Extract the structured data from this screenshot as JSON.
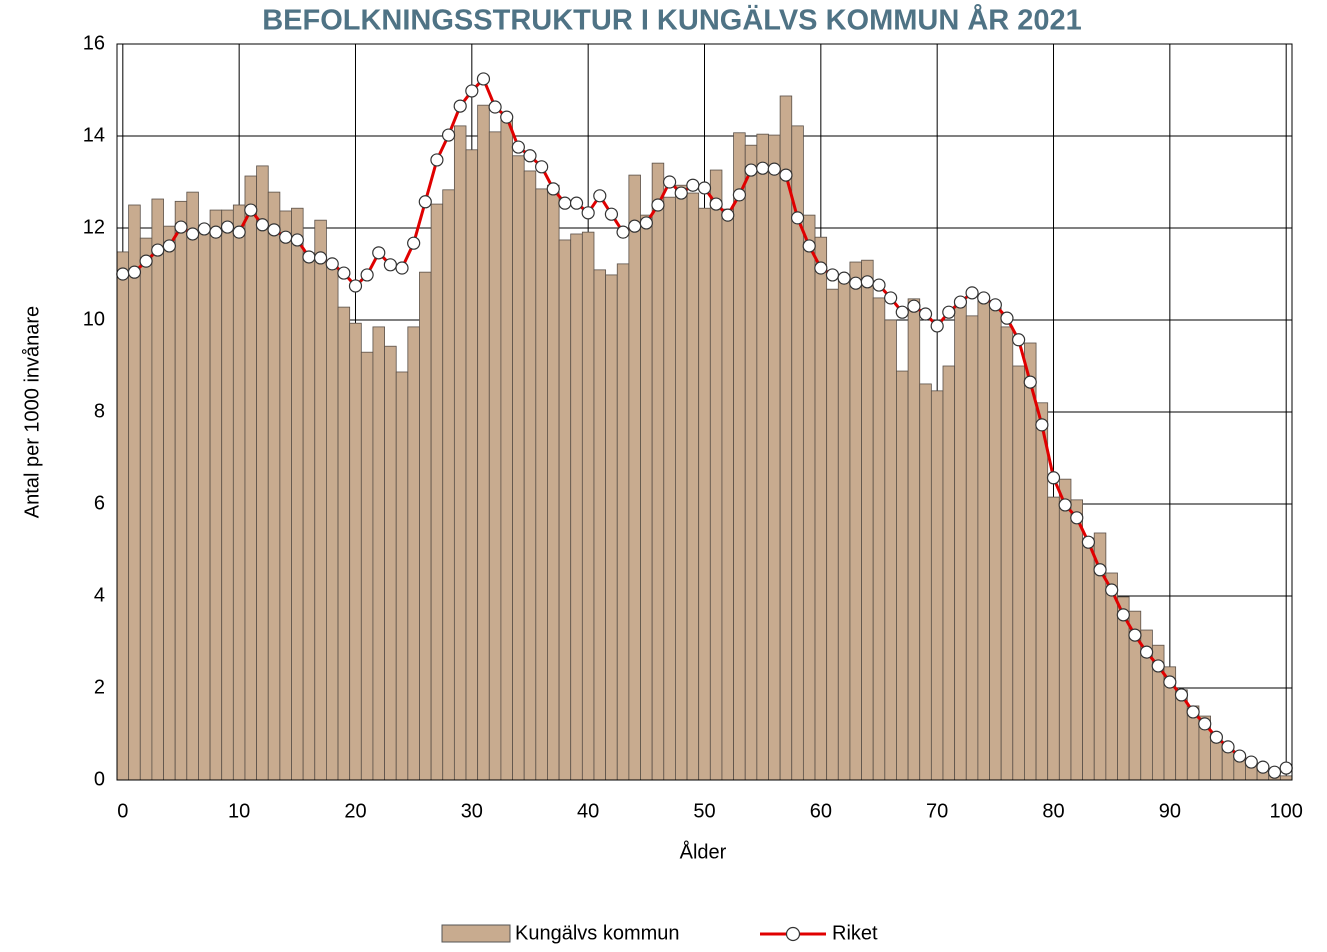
{
  "chart_data": {
    "type": "bar",
    "title": "BEFOLKNINGSSTRUKTUR I KUNGÄLVS KOMMUN ÅR 2021",
    "x_label": "Ålder",
    "y_label": "Antal per 1000 invånare",
    "x": [
      0,
      1,
      2,
      3,
      4,
      5,
      6,
      7,
      8,
      9,
      10,
      11,
      12,
      13,
      14,
      15,
      16,
      17,
      18,
      19,
      20,
      21,
      22,
      23,
      24,
      25,
      26,
      27,
      28,
      29,
      30,
      31,
      32,
      33,
      34,
      35,
      36,
      37,
      38,
      39,
      40,
      41,
      42,
      43,
      44,
      45,
      46,
      47,
      48,
      49,
      50,
      51,
      52,
      53,
      54,
      55,
      56,
      57,
      58,
      59,
      60,
      61,
      62,
      63,
      64,
      65,
      66,
      67,
      68,
      69,
      70,
      71,
      72,
      73,
      74,
      75,
      76,
      77,
      78,
      79,
      80,
      81,
      82,
      83,
      84,
      85,
      86,
      87,
      88,
      89,
      90,
      91,
      92,
      93,
      94,
      95,
      96,
      97,
      98,
      99,
      100
    ],
    "series": [
      {
        "name": "Kungälvs kommun",
        "type": "bar",
        "color": "#c8ab8f",
        "values": [
          11.48,
          12.5,
          11.78,
          12.63,
          12.04,
          12.58,
          12.78,
          12.04,
          12.39,
          12.39,
          12.5,
          13.13,
          13.35,
          12.78,
          12.37,
          12.43,
          11.46,
          12.17,
          11.17,
          10.28,
          9.93,
          9.3,
          9.85,
          9.43,
          8.87,
          9.85,
          11.04,
          12.52,
          12.83,
          14.22,
          13.7,
          14.67,
          14.09,
          14.39,
          13.57,
          13.24,
          12.85,
          12.93,
          11.74,
          11.87,
          11.91,
          11.09,
          10.98,
          11.22,
          13.15,
          12.28,
          13.41,
          12.67,
          12.93,
          12.76,
          12.43,
          13.26,
          12.41,
          14.07,
          13.8,
          14.04,
          14.02,
          14.87,
          14.22,
          12.28,
          11.8,
          10.67,
          10.91,
          11.26,
          11.3,
          10.48,
          10.0,
          8.89,
          10.46,
          8.61,
          8.46,
          9.0,
          10.43,
          10.09,
          10.48,
          10.26,
          9.85,
          9.0,
          9.5,
          8.2,
          6.15,
          6.54,
          6.09,
          5.26,
          5.37,
          4.5,
          3.98,
          3.67,
          3.26,
          2.93,
          2.46,
          1.96,
          1.61,
          1.39,
          0.98,
          0.7,
          0.5,
          0.35,
          0.22,
          0.11,
          0.09
        ]
      },
      {
        "name": "Riket",
        "type": "line",
        "color": "#e00000",
        "values": [
          11.0,
          11.04,
          11.28,
          11.52,
          11.61,
          12.02,
          11.87,
          11.98,
          11.91,
          12.02,
          11.91,
          12.39,
          12.07,
          11.96,
          11.8,
          11.74,
          11.37,
          11.35,
          11.22,
          11.02,
          10.74,
          10.98,
          11.46,
          11.2,
          11.13,
          11.67,
          12.57,
          13.48,
          14.02,
          14.65,
          14.98,
          15.24,
          14.63,
          14.41,
          13.76,
          13.57,
          13.33,
          12.85,
          12.54,
          12.54,
          12.33,
          12.7,
          12.3,
          11.91,
          12.04,
          12.11,
          12.5,
          13.0,
          12.76,
          12.93,
          12.87,
          12.52,
          12.28,
          12.72,
          13.26,
          13.3,
          13.28,
          13.15,
          12.22,
          11.61,
          11.13,
          10.98,
          10.91,
          10.8,
          10.83,
          10.76,
          10.48,
          10.17,
          10.3,
          10.13,
          9.87,
          10.17,
          10.39,
          10.59,
          10.48,
          10.33,
          10.04,
          9.57,
          8.65,
          7.72,
          6.57,
          5.98,
          5.7,
          5.17,
          4.57,
          4.13,
          3.59,
          3.15,
          2.78,
          2.48,
          2.13,
          1.85,
          1.48,
          1.22,
          0.93,
          0.72,
          0.52,
          0.39,
          0.28,
          0.17,
          0.26
        ]
      }
    ],
    "xlim": [
      -0.5,
      100.5
    ],
    "xticks": [
      0,
      10,
      20,
      30,
      40,
      50,
      60,
      70,
      80,
      90,
      100
    ],
    "ylim": [
      0,
      16
    ],
    "yticks": [
      0,
      2,
      4,
      6,
      8,
      10,
      12,
      14,
      16
    ],
    "grid": true,
    "legend": "bottom"
  }
}
